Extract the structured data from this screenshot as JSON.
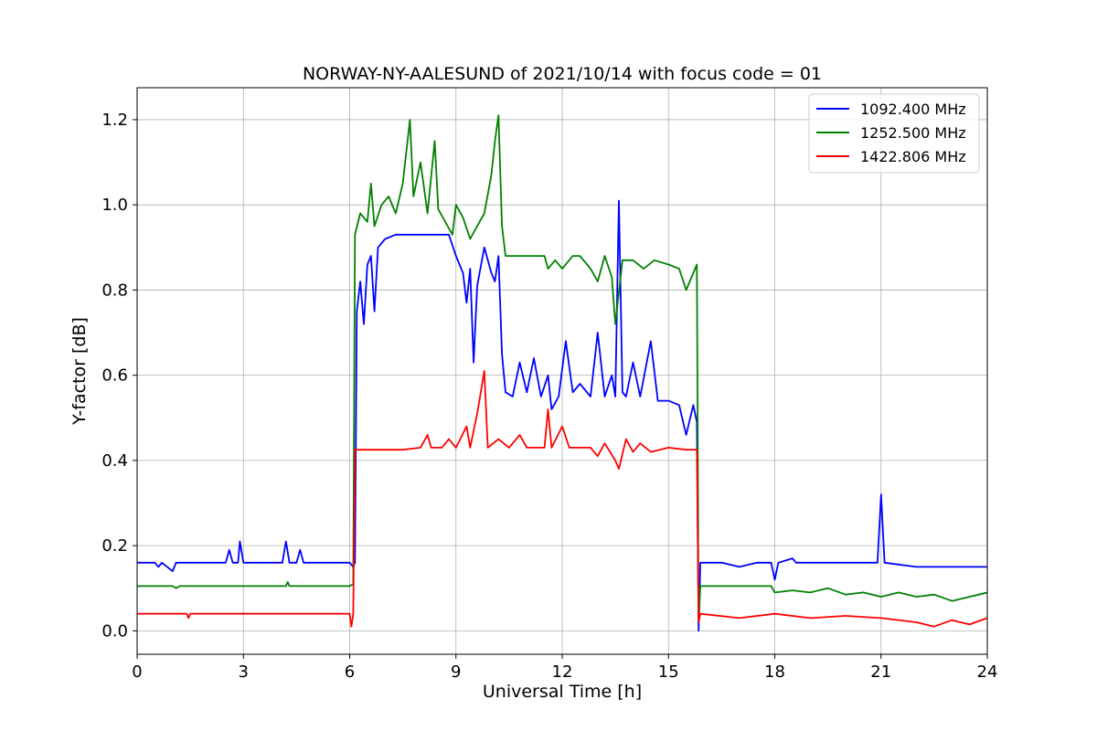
{
  "chart_data": {
    "type": "line",
    "title": "NORWAY-NY-AALESUND of 2021/10/14 with focus code = 01",
    "xlabel": "Universal Time [h]",
    "ylabel": "Y-factor [dB]",
    "xlim": [
      0,
      24
    ],
    "ylim": [
      -0.055,
      1.275
    ],
    "xticks": [
      0,
      3,
      6,
      9,
      12,
      15,
      18,
      21,
      24
    ],
    "yticks": [
      "0.0",
      "0.2",
      "0.4",
      "0.6",
      "0.8",
      "1.0",
      "1.2"
    ],
    "grid": true,
    "legend_position": "top-right",
    "series": [
      {
        "name": "1092.400 MHz",
        "color": "#0000ff",
        "points": [
          [
            0,
            0.16
          ],
          [
            0.5,
            0.16
          ],
          [
            0.6,
            0.15
          ],
          [
            0.7,
            0.16
          ],
          [
            1.0,
            0.14
          ],
          [
            1.1,
            0.16
          ],
          [
            2.5,
            0.16
          ],
          [
            2.6,
            0.19
          ],
          [
            2.7,
            0.16
          ],
          [
            2.85,
            0.16
          ],
          [
            2.9,
            0.21
          ],
          [
            3.0,
            0.16
          ],
          [
            4.1,
            0.16
          ],
          [
            4.2,
            0.21
          ],
          [
            4.3,
            0.16
          ],
          [
            4.5,
            0.16
          ],
          [
            4.6,
            0.19
          ],
          [
            4.7,
            0.16
          ],
          [
            6.0,
            0.16
          ],
          [
            6.1,
            0.15
          ],
          [
            6.15,
            0.16
          ],
          [
            6.2,
            0.75
          ],
          [
            6.3,
            0.82
          ],
          [
            6.4,
            0.72
          ],
          [
            6.5,
            0.86
          ],
          [
            6.6,
            0.88
          ],
          [
            6.7,
            0.75
          ],
          [
            6.8,
            0.9
          ],
          [
            7.0,
            0.92
          ],
          [
            7.3,
            0.93
          ],
          [
            7.6,
            0.93
          ],
          [
            8.0,
            0.93
          ],
          [
            8.5,
            0.93
          ],
          [
            8.8,
            0.93
          ],
          [
            9.0,
            0.88
          ],
          [
            9.2,
            0.84
          ],
          [
            9.3,
            0.77
          ],
          [
            9.4,
            0.85
          ],
          [
            9.5,
            0.63
          ],
          [
            9.6,
            0.81
          ],
          [
            9.8,
            0.9
          ],
          [
            10.0,
            0.84
          ],
          [
            10.1,
            0.82
          ],
          [
            10.2,
            0.88
          ],
          [
            10.3,
            0.65
          ],
          [
            10.4,
            0.56
          ],
          [
            10.6,
            0.55
          ],
          [
            10.8,
            0.63
          ],
          [
            11.0,
            0.56
          ],
          [
            11.2,
            0.64
          ],
          [
            11.4,
            0.55
          ],
          [
            11.6,
            0.6
          ],
          [
            11.7,
            0.52
          ],
          [
            11.9,
            0.55
          ],
          [
            12.1,
            0.68
          ],
          [
            12.3,
            0.56
          ],
          [
            12.5,
            0.58
          ],
          [
            12.8,
            0.55
          ],
          [
            13.0,
            0.7
          ],
          [
            13.2,
            0.55
          ],
          [
            13.4,
            0.6
          ],
          [
            13.5,
            0.55
          ],
          [
            13.6,
            1.01
          ],
          [
            13.7,
            0.56
          ],
          [
            13.8,
            0.55
          ],
          [
            14.0,
            0.63
          ],
          [
            14.2,
            0.55
          ],
          [
            14.5,
            0.68
          ],
          [
            14.7,
            0.54
          ],
          [
            15.0,
            0.54
          ],
          [
            15.3,
            0.53
          ],
          [
            15.5,
            0.46
          ],
          [
            15.7,
            0.53
          ],
          [
            15.8,
            0.49
          ],
          [
            15.85,
            0.0
          ],
          [
            15.9,
            0.16
          ],
          [
            16.5,
            0.16
          ],
          [
            17.0,
            0.15
          ],
          [
            17.5,
            0.16
          ],
          [
            17.9,
            0.16
          ],
          [
            18.0,
            0.12
          ],
          [
            18.1,
            0.16
          ],
          [
            18.5,
            0.17
          ],
          [
            18.6,
            0.16
          ],
          [
            20.9,
            0.16
          ],
          [
            21.0,
            0.32
          ],
          [
            21.1,
            0.16
          ],
          [
            22.0,
            0.15
          ],
          [
            23.0,
            0.15
          ],
          [
            24.0,
            0.15
          ]
        ]
      },
      {
        "name": "1252.500 MHz",
        "color": "#008000",
        "points": [
          [
            0,
            0.105
          ],
          [
            1.0,
            0.105
          ],
          [
            1.1,
            0.1
          ],
          [
            1.2,
            0.105
          ],
          [
            4.2,
            0.105
          ],
          [
            4.25,
            0.115
          ],
          [
            4.3,
            0.105
          ],
          [
            6.0,
            0.105
          ],
          [
            6.1,
            0.11
          ],
          [
            6.15,
            0.93
          ],
          [
            6.3,
            0.98
          ],
          [
            6.5,
            0.96
          ],
          [
            6.6,
            1.05
          ],
          [
            6.7,
            0.95
          ],
          [
            6.9,
            1.0
          ],
          [
            7.1,
            1.02
          ],
          [
            7.3,
            0.98
          ],
          [
            7.5,
            1.05
          ],
          [
            7.7,
            1.2
          ],
          [
            7.8,
            1.02
          ],
          [
            8.0,
            1.1
          ],
          [
            8.2,
            0.98
          ],
          [
            8.4,
            1.15
          ],
          [
            8.5,
            0.99
          ],
          [
            8.7,
            0.96
          ],
          [
            8.9,
            0.93
          ],
          [
            9.0,
            1.0
          ],
          [
            9.2,
            0.97
          ],
          [
            9.4,
            0.92
          ],
          [
            9.6,
            0.95
          ],
          [
            9.8,
            0.98
          ],
          [
            10.0,
            1.07
          ],
          [
            10.1,
            1.15
          ],
          [
            10.2,
            1.21
          ],
          [
            10.3,
            0.95
          ],
          [
            10.4,
            0.88
          ],
          [
            11.0,
            0.88
          ],
          [
            11.5,
            0.88
          ],
          [
            11.6,
            0.85
          ],
          [
            11.8,
            0.87
          ],
          [
            12.0,
            0.85
          ],
          [
            12.3,
            0.88
          ],
          [
            12.5,
            0.88
          ],
          [
            12.8,
            0.85
          ],
          [
            13.0,
            0.82
          ],
          [
            13.2,
            0.88
          ],
          [
            13.4,
            0.83
          ],
          [
            13.5,
            0.72
          ],
          [
            13.7,
            0.87
          ],
          [
            14.0,
            0.87
          ],
          [
            14.3,
            0.85
          ],
          [
            14.6,
            0.87
          ],
          [
            15.0,
            0.86
          ],
          [
            15.3,
            0.85
          ],
          [
            15.5,
            0.8
          ],
          [
            15.7,
            0.84
          ],
          [
            15.8,
            0.86
          ],
          [
            15.85,
            0.02
          ],
          [
            15.9,
            0.105
          ],
          [
            17.9,
            0.105
          ],
          [
            18.0,
            0.09
          ],
          [
            18.5,
            0.095
          ],
          [
            19.0,
            0.09
          ],
          [
            19.5,
            0.1
          ],
          [
            20.0,
            0.085
          ],
          [
            20.5,
            0.09
          ],
          [
            21.0,
            0.08
          ],
          [
            21.5,
            0.09
          ],
          [
            22.0,
            0.08
          ],
          [
            22.5,
            0.085
          ],
          [
            23.0,
            0.07
          ],
          [
            23.5,
            0.08
          ],
          [
            24.0,
            0.09
          ]
        ]
      },
      {
        "name": "1422.806 MHz",
        "color": "#ff0000",
        "points": [
          [
            0,
            0.04
          ],
          [
            1.4,
            0.04
          ],
          [
            1.45,
            0.03
          ],
          [
            1.5,
            0.04
          ],
          [
            6.0,
            0.04
          ],
          [
            6.05,
            0.01
          ],
          [
            6.1,
            0.04
          ],
          [
            6.15,
            0.425
          ],
          [
            7.5,
            0.425
          ],
          [
            8.0,
            0.43
          ],
          [
            8.2,
            0.46
          ],
          [
            8.3,
            0.43
          ],
          [
            8.6,
            0.43
          ],
          [
            8.8,
            0.45
          ],
          [
            9.0,
            0.43
          ],
          [
            9.3,
            0.48
          ],
          [
            9.4,
            0.43
          ],
          [
            9.6,
            0.51
          ],
          [
            9.8,
            0.61
          ],
          [
            9.9,
            0.43
          ],
          [
            10.2,
            0.45
          ],
          [
            10.5,
            0.43
          ],
          [
            10.8,
            0.46
          ],
          [
            11.0,
            0.43
          ],
          [
            11.5,
            0.43
          ],
          [
            11.6,
            0.52
          ],
          [
            11.7,
            0.43
          ],
          [
            12.0,
            0.48
          ],
          [
            12.2,
            0.43
          ],
          [
            12.8,
            0.43
          ],
          [
            13.0,
            0.41
          ],
          [
            13.2,
            0.44
          ],
          [
            13.5,
            0.4
          ],
          [
            13.6,
            0.38
          ],
          [
            13.8,
            0.45
          ],
          [
            14.0,
            0.42
          ],
          [
            14.2,
            0.44
          ],
          [
            14.5,
            0.42
          ],
          [
            15.0,
            0.43
          ],
          [
            15.5,
            0.425
          ],
          [
            15.8,
            0.425
          ],
          [
            15.85,
            0.02
          ],
          [
            15.9,
            0.04
          ],
          [
            17.0,
            0.03
          ],
          [
            18.0,
            0.04
          ],
          [
            19.0,
            0.03
          ],
          [
            20.0,
            0.035
          ],
          [
            21.0,
            0.03
          ],
          [
            22.0,
            0.02
          ],
          [
            22.5,
            0.01
          ],
          [
            23.0,
            0.025
          ],
          [
            23.5,
            0.015
          ],
          [
            24.0,
            0.03
          ]
        ]
      }
    ]
  }
}
